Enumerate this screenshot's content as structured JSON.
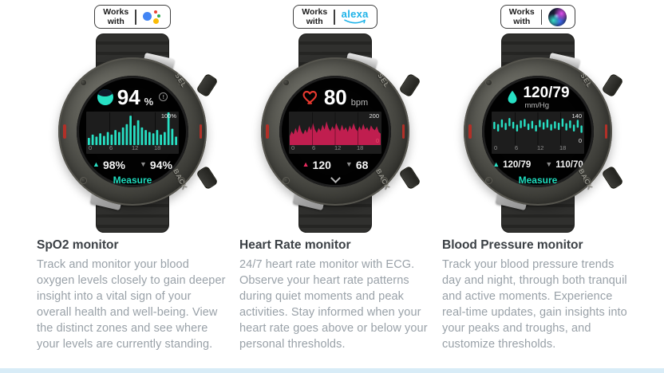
{
  "page": {
    "background": "#ffffff",
    "footer_strip_color": "#d8ecf7"
  },
  "columns": [
    {
      "id": "spo2",
      "badge": {
        "line1": "Works",
        "line2": "with",
        "icon": "google-assistant"
      },
      "watch": {
        "case_labels": {
          "top_button": "SEL",
          "bottom_button": "BACK"
        },
        "screen": {
          "icon": "spo2-gauge",
          "value": "94",
          "unit": "%",
          "info": "!",
          "stats": {
            "high": "98%",
            "low": "94%"
          },
          "action": "Measure"
        }
      },
      "chart_data": {
        "type": "bar",
        "title": "SpO2 24-hour history",
        "x_hours": [
          0,
          1,
          2,
          3,
          4,
          5,
          6,
          7,
          8,
          9,
          10,
          11,
          12,
          13,
          14,
          15,
          16,
          17,
          18,
          19,
          20,
          21,
          22,
          23
        ],
        "values": [
          22,
          32,
          26,
          36,
          28,
          40,
          32,
          46,
          40,
          54,
          64,
          90,
          60,
          76,
          54,
          46,
          40,
          36,
          46,
          32,
          40,
          100,
          50,
          26
        ],
        "xticks": [
          "0",
          "6",
          "12",
          "18"
        ],
        "ylim": [
          0,
          100
        ],
        "ymax_label": "100%",
        "ymin_label": "",
        "color": "#27e0c4",
        "panel_bg": "#1d1d1d",
        "grid": "vertical-quarters"
      },
      "title": "SpO2 monitor",
      "description": "Track and monitor your blood oxygen levels closely to gain deeper insight into a vital sign of your overall health and well-being. View the distinct zones and see where your levels are currently standing."
    },
    {
      "id": "heart-rate",
      "badge": {
        "line1": "Works",
        "line2": "with",
        "icon": "alexa",
        "alexa_word": "alexa"
      },
      "watch": {
        "case_labels": {
          "top_button": "SEL",
          "bottom_button": "BACK"
        },
        "screen": {
          "icon": "heart",
          "value": "80",
          "unit": "bpm",
          "stats": {
            "high": "120",
            "low": "68"
          },
          "action": ""
        }
      },
      "chart_data": {
        "type": "area",
        "title": "Heart rate 24-hour history",
        "values": [
          55,
          85,
          65,
          105,
          75,
          125,
          85,
          65,
          95,
          75,
          115,
          90,
          135,
          95,
          75,
          105,
          85,
          125,
          95,
          145,
          105,
          85,
          115,
          95,
          135,
          105,
          85,
          125,
          90,
          110,
          80,
          120,
          95,
          135,
          100,
          85,
          115,
          90,
          130,
          95,
          110,
          85,
          120,
          100,
          90,
          115,
          80,
          70
        ],
        "xticks": [
          "0",
          "6",
          "12",
          "18"
        ],
        "ylim": [
          0,
          200
        ],
        "ymax_label": "200",
        "ymin_label": "0",
        "color": "#c01e4f",
        "panel_bg": "#1d1d1d",
        "grid": "vertical-quarters"
      },
      "title": "Heart Rate monitor",
      "description": "24/7 heart rate monitor with ECG. Observe your heart rate patterns during quiet moments and peak activities. Stay informed when your heart rate goes above or below your personal thresholds."
    },
    {
      "id": "blood-pressure",
      "badge": {
        "line1": "Works",
        "line2": "with",
        "icon": "siri"
      },
      "watch": {
        "case_labels": {
          "top_button": "SEL",
          "bottom_button": "BACK"
        },
        "screen": {
          "icon": "droplet",
          "value": "120/79",
          "unit": "mm/Hg",
          "stats": {
            "high": "120/79",
            "low": "110/70"
          },
          "action": "Measure"
        }
      },
      "chart_data": {
        "type": "range-bar",
        "title": "Blood pressure 24-hour history",
        "values": [
          [
            68,
            100
          ],
          [
            58,
            90
          ],
          [
            75,
            110
          ],
          [
            64,
            95
          ],
          [
            80,
            116
          ],
          [
            70,
            100
          ],
          [
            58,
            88
          ],
          [
            72,
            106
          ],
          [
            78,
            112
          ],
          [
            64,
            92
          ],
          [
            70,
            104
          ],
          [
            58,
            86
          ],
          [
            76,
            108
          ],
          [
            66,
            98
          ],
          [
            74,
            110
          ],
          [
            62,
            90
          ],
          [
            70,
            102
          ],
          [
            64,
            96
          ],
          [
            78,
            114
          ],
          [
            62,
            94
          ],
          [
            72,
            106
          ],
          [
            58,
            88
          ],
          [
            74,
            108
          ],
          [
            52,
            84
          ]
        ],
        "xticks": [
          "0",
          "6",
          "12",
          "18"
        ],
        "ylim": [
          0,
          140
        ],
        "ymax_label": "140",
        "ymin_label": "0",
        "color": "#27e0c4",
        "panel_bg": "#1d1d1d",
        "grid": "vertical-quarters"
      },
      "title": "Blood Pressure monitor",
      "description": "Track your blood pressure trends day and night, through both tranquil and active moments. Experience real-time updates, gain insights into your peaks and troughs, and customize thresholds."
    }
  ]
}
